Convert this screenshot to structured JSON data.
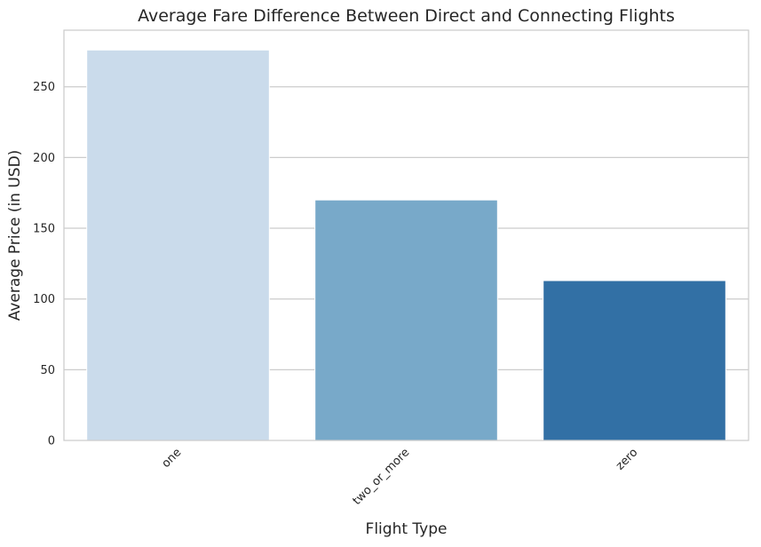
{
  "chart_data": {
    "type": "bar",
    "title": "Average Fare Difference Between Direct and Connecting Flights",
    "xlabel": "Flight Type",
    "ylabel": "Average Price (in USD)",
    "categories": [
      "one",
      "two_or_more",
      "zero"
    ],
    "values": [
      276,
      170,
      113
    ],
    "colors": [
      "#cadbeb",
      "#78a9c9",
      "#3270a5"
    ],
    "ylim": [
      0,
      290
    ],
    "yticks": [
      0,
      50,
      100,
      150,
      200,
      250
    ],
    "grid": "horizontal",
    "xtick_rotation": 45
  }
}
